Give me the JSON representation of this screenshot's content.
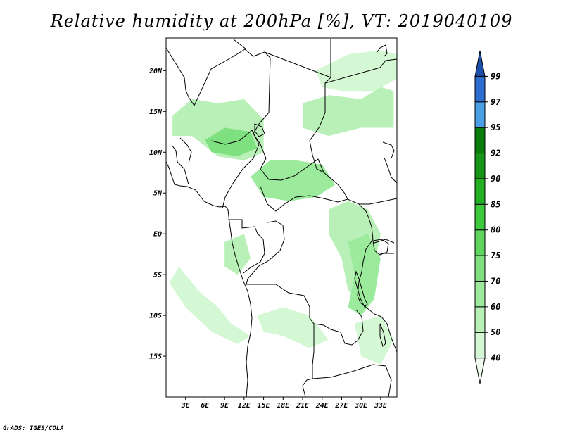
{
  "title": "Relative humidity at 200hPa [%], VT: 2019040109",
  "credit": "GrADS: IGES/COLA",
  "chart_data": {
    "type": "heatmap",
    "variable": "Relative humidity at 200hPa",
    "units": "%",
    "valid_time": "2019040109",
    "lon_range": [
      0,
      35.5
    ],
    "lat_range": [
      -20,
      24
    ],
    "lat_ticks": [
      {
        "value": 20,
        "label": "20N"
      },
      {
        "value": 15,
        "label": "15N"
      },
      {
        "value": 10,
        "label": "10N"
      },
      {
        "value": 5,
        "label": "5N"
      },
      {
        "value": 0,
        "label": "EQ"
      },
      {
        "value": -5,
        "label": "5S"
      },
      {
        "value": -10,
        "label": "10S"
      },
      {
        "value": -15,
        "label": "15S"
      }
    ],
    "lon_ticks": [
      {
        "value": 3,
        "label": "3E"
      },
      {
        "value": 6,
        "label": "6E"
      },
      {
        "value": 9,
        "label": "9E"
      },
      {
        "value": 12,
        "label": "12E"
      },
      {
        "value": 15,
        "label": "15E"
      },
      {
        "value": 18,
        "label": "18E"
      },
      {
        "value": 21,
        "label": "21E"
      },
      {
        "value": 24,
        "label": "24E"
      },
      {
        "value": 27,
        "label": "27E"
      },
      {
        "value": 30,
        "label": "30E"
      },
      {
        "value": 33,
        "label": "33E"
      }
    ],
    "colorbar": {
      "levels": [
        "40",
        "50",
        "60",
        "70",
        "75",
        "80",
        "85",
        "90",
        "92",
        "95",
        "97",
        "99"
      ],
      "colors": [
        "#eefbee",
        "#d4f7d4",
        "#b8f0b8",
        "#9ceb9c",
        "#7fe07f",
        "#5ed65e",
        "#3cc93c",
        "#22b022",
        "#169616",
        "#0a7e0a",
        "#4aa0e6",
        "#2b6ed1",
        "#1c4fa8"
      ]
    },
    "humid_regions": [
      {
        "name": "sahel-band",
        "level_index": 2,
        "points": [
          [
            1,
            14.5
          ],
          [
            4,
            16.5
          ],
          [
            8,
            16
          ],
          [
            12,
            16.5
          ],
          [
            15,
            14
          ],
          [
            15,
            10
          ],
          [
            12,
            9
          ],
          [
            8,
            9.5
          ],
          [
            4,
            12
          ],
          [
            1,
            12
          ]
        ]
      },
      {
        "name": "northeast-sudan",
        "level_index": 2,
        "points": [
          [
            21,
            16
          ],
          [
            25,
            17
          ],
          [
            30,
            16.5
          ],
          [
            33,
            18
          ],
          [
            35,
            17.5
          ],
          [
            35,
            13
          ],
          [
            30,
            13
          ],
          [
            25,
            12
          ],
          [
            21,
            13
          ]
        ]
      },
      {
        "name": "northeast-high",
        "level_index": 1,
        "points": [
          [
            23,
            20
          ],
          [
            28,
            22
          ],
          [
            33,
            22.5
          ],
          [
            35.5,
            22
          ],
          [
            35.5,
            19
          ],
          [
            32,
            17.5
          ],
          [
            27,
            17.5
          ],
          [
            24,
            18
          ]
        ]
      },
      {
        "name": "central-band",
        "level_index": 3,
        "points": [
          [
            13,
            7
          ],
          [
            16,
            9
          ],
          [
            20,
            9
          ],
          [
            24,
            8.5
          ],
          [
            26,
            6
          ],
          [
            23,
            4.5
          ],
          [
            19,
            4
          ],
          [
            15,
            4.5
          ]
        ]
      },
      {
        "name": "congo-east",
        "level_index": 2,
        "points": [
          [
            25,
            3
          ],
          [
            28,
            4
          ],
          [
            31,
            3
          ],
          [
            33,
            0
          ],
          [
            32,
            -4
          ],
          [
            30,
            -8
          ],
          [
            28,
            -7
          ],
          [
            27,
            -3
          ],
          [
            25,
            0
          ]
        ]
      },
      {
        "name": "great-lakes",
        "level_index": 3,
        "points": [
          [
            28,
            -1
          ],
          [
            31,
            0
          ],
          [
            33,
            -3
          ],
          [
            32,
            -8
          ],
          [
            30,
            -10
          ],
          [
            28,
            -9
          ],
          [
            29,
            -5
          ]
        ]
      },
      {
        "name": "angola-south",
        "level_index": 1,
        "points": [
          [
            14,
            -10
          ],
          [
            18,
            -9
          ],
          [
            22,
            -10
          ],
          [
            25,
            -13
          ],
          [
            22,
            -14
          ],
          [
            18,
            -12.5
          ],
          [
            15,
            -12
          ]
        ]
      },
      {
        "name": "atlantic-arc",
        "level_index": 1,
        "points": [
          [
            2,
            -4
          ],
          [
            5,
            -7
          ],
          [
            8,
            -9
          ],
          [
            10,
            -11
          ],
          [
            13,
            -12.5
          ],
          [
            11,
            -13.5
          ],
          [
            7,
            -12
          ],
          [
            3,
            -9
          ],
          [
            0.5,
            -6
          ]
        ]
      },
      {
        "name": "gabon-coast",
        "level_index": 2,
        "points": [
          [
            9,
            -1
          ],
          [
            12,
            0
          ],
          [
            13,
            -3
          ],
          [
            11,
            -5
          ],
          [
            9,
            -4
          ]
        ]
      },
      {
        "name": "sahel-core",
        "level_index": 4,
        "points": [
          [
            6,
            11.5
          ],
          [
            9,
            13
          ],
          [
            13,
            12.5
          ],
          [
            14,
            10.5
          ],
          [
            11,
            9.5
          ],
          [
            7,
            10
          ]
        ]
      },
      {
        "name": "south-east",
        "level_index": 1,
        "points": [
          [
            29,
            -11
          ],
          [
            33,
            -10
          ],
          [
            35,
            -13
          ],
          [
            33,
            -16
          ],
          [
            30,
            -15
          ]
        ]
      }
    ]
  }
}
